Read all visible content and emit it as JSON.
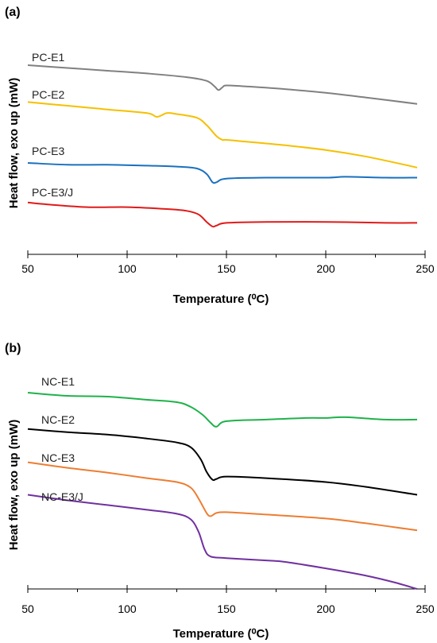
{
  "chart_data": [
    {
      "type": "line",
      "panel_label": "(a)",
      "xlabel": "Temperature (⁰C)",
      "ylabel": "Heat flow, exo up (mW)",
      "xlim": [
        50,
        250
      ],
      "x_ticks": [
        "50",
        "100",
        "150",
        "200",
        "250"
      ],
      "y_ticks": false,
      "grid": false,
      "legend": "none (series labeled directly above curves)",
      "series": [
        {
          "name": "PC-E1",
          "color": "#808080",
          "x": [
            50,
            70,
            90,
            110,
            130,
            140,
            144,
            146,
            148,
            150,
            160,
            180,
            200,
            220,
            246
          ],
          "y": [
            9.1,
            8.95,
            8.8,
            8.65,
            8.45,
            8.25,
            7.95,
            7.75,
            7.9,
            8.0,
            7.95,
            7.8,
            7.6,
            7.35,
            7.0
          ]
        },
        {
          "name": "PC-E2",
          "color": "#F5C000",
          "x": [
            50,
            70,
            90,
            110,
            115,
            120,
            125,
            135,
            140,
            145,
            148,
            150,
            160,
            180,
            200,
            220,
            246
          ],
          "y": [
            7.1,
            6.9,
            6.7,
            6.5,
            6.3,
            6.5,
            6.45,
            6.25,
            5.85,
            5.25,
            5.05,
            5.05,
            4.95,
            4.75,
            4.5,
            4.15,
            3.55
          ]
        },
        {
          "name": "PC-E3",
          "color": "#1A70C0",
          "x": [
            50,
            70,
            90,
            110,
            125,
            135,
            140,
            143,
            145,
            150,
            170,
            200,
            210,
            230,
            246
          ],
          "y": [
            3.8,
            3.7,
            3.7,
            3.65,
            3.6,
            3.5,
            3.2,
            2.75,
            2.75,
            2.95,
            3.0,
            3.0,
            3.05,
            3.0,
            3.0
          ]
        },
        {
          "name": "PC-E3/J",
          "color": "#E01A1A",
          "x": [
            50,
            60,
            80,
            100,
            120,
            130,
            136,
            140,
            143,
            145,
            150,
            170,
            200,
            230,
            246
          ],
          "y": [
            1.65,
            1.55,
            1.4,
            1.4,
            1.3,
            1.2,
            1.0,
            0.6,
            0.35,
            0.4,
            0.55,
            0.6,
            0.6,
            0.55,
            0.55
          ]
        }
      ]
    },
    {
      "type": "line",
      "panel_label": "(b)",
      "xlabel": "Temperature (⁰C)",
      "ylabel": "Heat flow, exo up (mW)",
      "xlim": [
        50,
        250
      ],
      "x_ticks": [
        "50",
        "100",
        "150",
        "200",
        "250"
      ],
      "y_ticks": false,
      "grid": false,
      "legend": "none (series labeled directly above curves)",
      "series": [
        {
          "name": "NC-E1",
          "color": "#1FB24A",
          "x": [
            50,
            70,
            90,
            110,
            125,
            132,
            138,
            142,
            145,
            150,
            170,
            190,
            200,
            210,
            230,
            246
          ],
          "y": [
            12.0,
            11.8,
            11.75,
            11.55,
            11.4,
            11.1,
            10.6,
            10.1,
            9.85,
            10.2,
            10.3,
            10.4,
            10.4,
            10.45,
            10.3,
            10.3
          ]
        },
        {
          "name": "NC-E2",
          "color": "#000000",
          "x": [
            50,
            70,
            90,
            110,
            125,
            132,
            137,
            140,
            143,
            145,
            150,
            170,
            200,
            220,
            246
          ],
          "y": [
            9.7,
            9.5,
            9.35,
            9.1,
            8.85,
            8.55,
            7.8,
            7.0,
            6.5,
            6.55,
            6.7,
            6.6,
            6.35,
            6.05,
            5.55
          ]
        },
        {
          "name": "NC-E3",
          "color": "#ED7D31",
          "x": [
            50,
            70,
            90,
            110,
            125,
            132,
            136,
            140,
            142,
            145,
            150,
            170,
            200,
            220,
            246
          ],
          "y": [
            7.6,
            7.25,
            6.95,
            6.6,
            6.35,
            6.0,
            5.3,
            4.4,
            4.2,
            4.4,
            4.45,
            4.3,
            4.05,
            3.75,
            3.3
          ]
        },
        {
          "name": "NC-E3/J",
          "color": "#7030A0",
          "x": [
            50,
            70,
            90,
            110,
            125,
            132,
            136,
            139,
            142,
            150,
            170,
            180,
            200,
            220,
            235,
            246
          ],
          "y": [
            5.55,
            5.2,
            4.9,
            4.6,
            4.35,
            4.0,
            3.2,
            2.1,
            1.65,
            1.55,
            1.4,
            1.3,
            0.9,
            0.45,
            0.0,
            -0.4
          ]
        }
      ]
    }
  ]
}
